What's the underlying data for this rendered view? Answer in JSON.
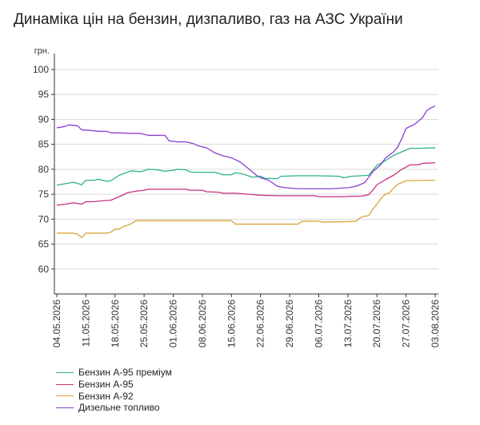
{
  "title": "Динаміка цін на бензин, дизпаливо, газ на АЗС України",
  "chart_data": {
    "type": "line",
    "ylabel": "грн.",
    "ylim": [
      55,
      100
    ],
    "yticks": [
      60,
      65,
      70,
      75,
      80,
      85,
      90,
      95,
      100
    ],
    "xlim": [
      "2026-05-04",
      "2026-08-03"
    ],
    "xticks": [
      "04.05.2026",
      "11.05.2026",
      "18.05.2026",
      "25.05.2026",
      "01.06.2026",
      "08.06.2026",
      "15.06.2026",
      "22.06.2026",
      "29.06.2026",
      "06.07.2026",
      "13.07.2026",
      "20.07.2026",
      "27.07.2026",
      "03.08.2026"
    ],
    "grid": "horizontal",
    "legend_position": "bottom-left",
    "series": [
      {
        "name": "Бензин А-95 преміум",
        "color": "#2bb08c",
        "points": [
          [
            "2026-05-04",
            76.8
          ],
          [
            "2026-05-06",
            77.1
          ],
          [
            "2026-05-08",
            77.4
          ],
          [
            "2026-05-10",
            76.9
          ],
          [
            "2026-05-11",
            77.8
          ],
          [
            "2026-05-13",
            77.8
          ],
          [
            "2026-05-14",
            78.0
          ],
          [
            "2026-05-16",
            77.6
          ],
          [
            "2026-05-17",
            77.7
          ],
          [
            "2026-05-19",
            78.8
          ],
          [
            "2026-05-21",
            79.4
          ],
          [
            "2026-05-22",
            79.7
          ],
          [
            "2026-05-24",
            79.5
          ],
          [
            "2026-05-25",
            79.7
          ],
          [
            "2026-05-26",
            80.0
          ],
          [
            "2026-05-28",
            79.9
          ],
          [
            "2026-05-30",
            79.6
          ],
          [
            "2026-06-01",
            79.8
          ],
          [
            "2026-06-02",
            80.0
          ],
          [
            "2026-06-04",
            79.9
          ],
          [
            "2026-06-05",
            79.5
          ],
          [
            "2026-06-06",
            79.4
          ],
          [
            "2026-06-11",
            79.4
          ],
          [
            "2026-06-13",
            78.9
          ],
          [
            "2026-06-15",
            78.9
          ],
          [
            "2026-06-16",
            79.3
          ],
          [
            "2026-06-18",
            79.0
          ],
          [
            "2026-06-20",
            78.4
          ],
          [
            "2026-06-22",
            78.6
          ],
          [
            "2026-06-23",
            78.2
          ],
          [
            "2026-06-26",
            78.1
          ],
          [
            "2026-06-27",
            78.6
          ],
          [
            "2026-07-01",
            78.7
          ],
          [
            "2026-07-06",
            78.7
          ],
          [
            "2026-07-11",
            78.6
          ],
          [
            "2026-07-12",
            78.3
          ],
          [
            "2026-07-14",
            78.6
          ],
          [
            "2026-07-18",
            78.8
          ],
          [
            "2026-07-19",
            79.8
          ],
          [
            "2026-07-20",
            80.8
          ],
          [
            "2026-07-22",
            81.7
          ],
          [
            "2026-07-24",
            82.8
          ],
          [
            "2026-07-26",
            83.5
          ],
          [
            "2026-07-28",
            84.2
          ],
          [
            "2026-07-30",
            84.2
          ],
          [
            "2026-08-03",
            84.3
          ]
        ]
      },
      {
        "name": "Бензин А-95",
        "color": "#c72e7d",
        "points": [
          [
            "2026-05-04",
            72.8
          ],
          [
            "2026-05-06",
            73.0
          ],
          [
            "2026-05-08",
            73.3
          ],
          [
            "2026-05-10",
            73.0
          ],
          [
            "2026-05-11",
            73.5
          ],
          [
            "2026-05-13",
            73.5
          ],
          [
            "2026-05-15",
            73.7
          ],
          [
            "2026-05-17",
            73.8
          ],
          [
            "2026-05-19",
            74.5
          ],
          [
            "2026-05-21",
            75.3
          ],
          [
            "2026-05-23",
            75.6
          ],
          [
            "2026-05-25",
            75.8
          ],
          [
            "2026-05-26",
            76.0
          ],
          [
            "2026-05-30",
            76.0
          ],
          [
            "2026-06-04",
            76.0
          ],
          [
            "2026-06-05",
            75.8
          ],
          [
            "2026-06-08",
            75.8
          ],
          [
            "2026-06-09",
            75.5
          ],
          [
            "2026-06-12",
            75.4
          ],
          [
            "2026-06-13",
            75.2
          ],
          [
            "2026-06-16",
            75.2
          ],
          [
            "2026-06-19",
            75.0
          ],
          [
            "2026-06-22",
            74.8
          ],
          [
            "2026-06-26",
            74.7
          ],
          [
            "2026-07-01",
            74.7
          ],
          [
            "2026-07-05",
            74.7
          ],
          [
            "2026-07-06",
            74.5
          ],
          [
            "2026-07-12",
            74.5
          ],
          [
            "2026-07-14",
            74.6
          ],
          [
            "2026-07-16",
            74.6
          ],
          [
            "2026-07-18",
            74.9
          ],
          [
            "2026-07-19",
            75.8
          ],
          [
            "2026-07-20",
            76.9
          ],
          [
            "2026-07-22",
            77.9
          ],
          [
            "2026-07-24",
            78.8
          ],
          [
            "2026-07-26",
            80.0
          ],
          [
            "2026-07-28",
            80.9
          ],
          [
            "2026-07-30",
            80.9
          ],
          [
            "2026-07-31",
            81.2
          ],
          [
            "2026-08-03",
            81.3
          ]
        ]
      },
      {
        "name": "Бензин А-92",
        "color": "#d9a43a",
        "points": [
          [
            "2026-05-04",
            67.2
          ],
          [
            "2026-05-08",
            67.2
          ],
          [
            "2026-05-09",
            67.0
          ],
          [
            "2026-05-10",
            66.3
          ],
          [
            "2026-05-11",
            67.2
          ],
          [
            "2026-05-14",
            67.2
          ],
          [
            "2026-05-16",
            67.2
          ],
          [
            "2026-05-17",
            67.4
          ],
          [
            "2026-05-18",
            68.0
          ],
          [
            "2026-05-19",
            68.0
          ],
          [
            "2026-05-20",
            68.5
          ],
          [
            "2026-05-21",
            68.8
          ],
          [
            "2026-05-22",
            69.1
          ],
          [
            "2026-05-23",
            69.7
          ],
          [
            "2026-05-30",
            69.7
          ],
          [
            "2026-06-06",
            69.7
          ],
          [
            "2026-06-13",
            69.7
          ],
          [
            "2026-06-15",
            69.7
          ],
          [
            "2026-06-16",
            69.0
          ],
          [
            "2026-06-22",
            69.0
          ],
          [
            "2026-06-29",
            69.0
          ],
          [
            "2026-07-01",
            69.0
          ],
          [
            "2026-07-02",
            69.6
          ],
          [
            "2026-07-06",
            69.6
          ],
          [
            "2026-07-07",
            69.4
          ],
          [
            "2026-07-13",
            69.5
          ],
          [
            "2026-07-15",
            69.6
          ],
          [
            "2026-07-16",
            70.3
          ],
          [
            "2026-07-17",
            70.6
          ],
          [
            "2026-07-18",
            70.7
          ],
          [
            "2026-07-19",
            72.0
          ],
          [
            "2026-07-20",
            73.0
          ],
          [
            "2026-07-21",
            74.2
          ],
          [
            "2026-07-22",
            75.0
          ],
          [
            "2026-07-23",
            75.3
          ],
          [
            "2026-07-24",
            76.2
          ],
          [
            "2026-07-25",
            77.0
          ],
          [
            "2026-07-27",
            77.7
          ],
          [
            "2026-08-01",
            77.8
          ],
          [
            "2026-08-03",
            77.8
          ]
        ]
      },
      {
        "name": "Дизельне топливо",
        "color": "#8b3fd1",
        "points": [
          [
            "2026-05-04",
            88.3
          ],
          [
            "2026-05-06",
            88.6
          ],
          [
            "2026-05-07",
            88.9
          ],
          [
            "2026-05-09",
            88.7
          ],
          [
            "2026-05-10",
            87.9
          ],
          [
            "2026-05-12",
            87.8
          ],
          [
            "2026-05-14",
            87.6
          ],
          [
            "2026-05-16",
            87.6
          ],
          [
            "2026-05-17",
            87.3
          ],
          [
            "2026-05-19",
            87.3
          ],
          [
            "2026-05-22",
            87.2
          ],
          [
            "2026-05-24",
            87.2
          ],
          [
            "2026-05-26",
            86.8
          ],
          [
            "2026-05-28",
            86.8
          ],
          [
            "2026-05-30",
            86.8
          ],
          [
            "2026-05-31",
            85.7
          ],
          [
            "2026-06-02",
            85.5
          ],
          [
            "2026-06-04",
            85.5
          ],
          [
            "2026-06-06",
            85.1
          ],
          [
            "2026-06-07",
            84.7
          ],
          [
            "2026-06-09",
            84.3
          ],
          [
            "2026-06-11",
            83.3
          ],
          [
            "2026-06-13",
            82.7
          ],
          [
            "2026-06-15",
            82.3
          ],
          [
            "2026-06-17",
            81.5
          ],
          [
            "2026-06-19",
            80.2
          ],
          [
            "2026-06-21",
            78.8
          ],
          [
            "2026-06-22",
            78.3
          ],
          [
            "2026-06-24",
            77.8
          ],
          [
            "2026-06-26",
            76.6
          ],
          [
            "2026-06-28",
            76.3
          ],
          [
            "2026-07-01",
            76.1
          ],
          [
            "2026-07-05",
            76.1
          ],
          [
            "2026-07-09",
            76.1
          ],
          [
            "2026-07-11",
            76.2
          ],
          [
            "2026-07-13",
            76.3
          ],
          [
            "2026-07-15",
            76.6
          ],
          [
            "2026-07-17",
            77.3
          ],
          [
            "2026-07-19",
            79.5
          ],
          [
            "2026-07-21",
            81.0
          ],
          [
            "2026-07-22",
            82.2
          ],
          [
            "2026-07-24",
            83.5
          ],
          [
            "2026-07-25",
            84.5
          ],
          [
            "2026-07-26",
            86.2
          ],
          [
            "2026-07-27",
            88.2
          ],
          [
            "2026-07-29",
            89.0
          ],
          [
            "2026-07-31",
            90.4
          ],
          [
            "2026-08-01",
            91.8
          ],
          [
            "2026-08-02",
            92.3
          ],
          [
            "2026-08-03",
            92.7
          ]
        ]
      }
    ]
  }
}
